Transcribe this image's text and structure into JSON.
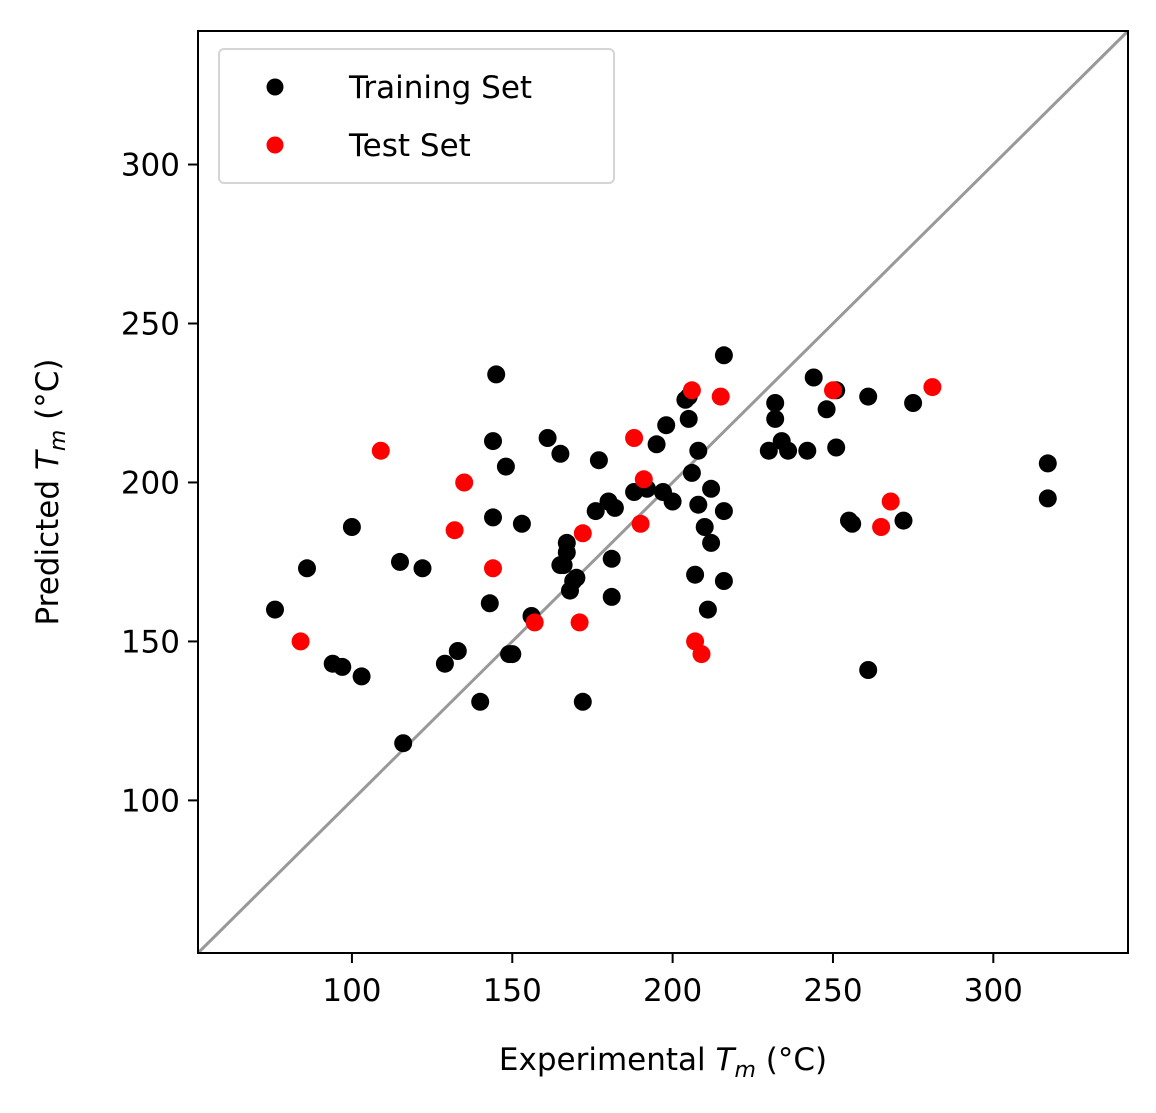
{
  "chart_data": {
    "type": "scatter",
    "xlabel": {
      "prefix": "Experimental ",
      "var": "T",
      "sub": "m",
      "suffix": " (°C)"
    },
    "ylabel": {
      "prefix": "Predicted ",
      "var": "T",
      "sub": "m",
      "suffix": " (°C)"
    },
    "xlim": [
      52,
      342
    ],
    "ylim": [
      52,
      342
    ],
    "xticks": [
      100,
      150,
      200,
      250,
      300
    ],
    "yticks": [
      100,
      150,
      200,
      250,
      300
    ],
    "legend_position": "top-left",
    "reference_line": {
      "label": "",
      "color": "#999999",
      "points": [
        [
          52,
          52
        ],
        [
          342,
          342
        ]
      ]
    },
    "series": [
      {
        "name": "Training Set",
        "color": "#000000",
        "points": [
          [
            76,
            160
          ],
          [
            86,
            173
          ],
          [
            94,
            143
          ],
          [
            97,
            142
          ],
          [
            100,
            186
          ],
          [
            103,
            139
          ],
          [
            115,
            175
          ],
          [
            116,
            118
          ],
          [
            122,
            173
          ],
          [
            129,
            143
          ],
          [
            133,
            147
          ],
          [
            140,
            131
          ],
          [
            143,
            162
          ],
          [
            144,
            189
          ],
          [
            144,
            213
          ],
          [
            145,
            234
          ],
          [
            148,
            205
          ],
          [
            149,
            146
          ],
          [
            150,
            146
          ],
          [
            153,
            187
          ],
          [
            156,
            158
          ],
          [
            161,
            214
          ],
          [
            165,
            174
          ],
          [
            165,
            209
          ],
          [
            166,
            174
          ],
          [
            167,
            178
          ],
          [
            167,
            181
          ],
          [
            168,
            166
          ],
          [
            169,
            169
          ],
          [
            170,
            170
          ],
          [
            172,
            131
          ],
          [
            176,
            191
          ],
          [
            177,
            207
          ],
          [
            180,
            194
          ],
          [
            181,
            176
          ],
          [
            181,
            164
          ],
          [
            182,
            192
          ],
          [
            188,
            197
          ],
          [
            192,
            198
          ],
          [
            195,
            212
          ],
          [
            197,
            197
          ],
          [
            198,
            218
          ],
          [
            200,
            194
          ],
          [
            204,
            226
          ],
          [
            205,
            220
          ],
          [
            205,
            227
          ],
          [
            206,
            203
          ],
          [
            207,
            171
          ],
          [
            208,
            193
          ],
          [
            208,
            210
          ],
          [
            210,
            186
          ],
          [
            211,
            160
          ],
          [
            212,
            181
          ],
          [
            212,
            198
          ],
          [
            216,
            240
          ],
          [
            216,
            191
          ],
          [
            216,
            169
          ],
          [
            230,
            210
          ],
          [
            232,
            225
          ],
          [
            232,
            220
          ],
          [
            234,
            213
          ],
          [
            236,
            210
          ],
          [
            242,
            210
          ],
          [
            244,
            233
          ],
          [
            248,
            223
          ],
          [
            251,
            229
          ],
          [
            251,
            211
          ],
          [
            255,
            188
          ],
          [
            256,
            187
          ],
          [
            261,
            141
          ],
          [
            261,
            227
          ],
          [
            272,
            188
          ],
          [
            275,
            225
          ],
          [
            317,
            206
          ],
          [
            317,
            195
          ]
        ]
      },
      {
        "name": "Test Set",
        "color": "#ff0000",
        "points": [
          [
            84,
            150
          ],
          [
            109,
            210
          ],
          [
            132,
            185
          ],
          [
            135,
            200
          ],
          [
            144,
            173
          ],
          [
            157,
            156
          ],
          [
            171,
            156
          ],
          [
            172,
            184
          ],
          [
            188,
            214
          ],
          [
            190,
            187
          ],
          [
            191,
            201
          ],
          [
            206,
            229
          ],
          [
            207,
            150
          ],
          [
            209,
            146
          ],
          [
            215,
            227
          ],
          [
            250,
            229
          ],
          [
            265,
            186
          ],
          [
            268,
            194
          ],
          [
            281,
            230
          ]
        ]
      }
    ]
  }
}
